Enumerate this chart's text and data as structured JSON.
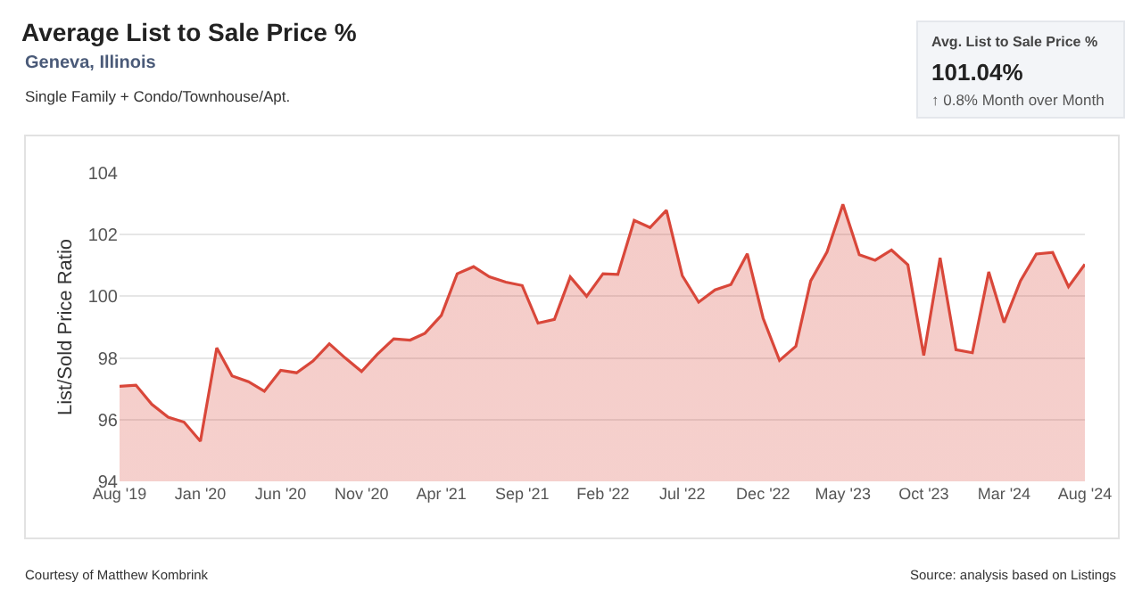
{
  "chart_data": {
    "type": "area",
    "title": "Average List to Sale Price %",
    "subtitle": "Geneva, Illinois",
    "ylabel": "List/Sold Price Ratio",
    "annotations": [
      "Single Family + Condo/Townhouse/Apt.",
      "Avg. List to Sale Price %",
      "101.04%",
      "↑ 0.8% Month over Month",
      "Courtesy of Matthew Kombrink",
      "Source: analysis based on Listings"
    ],
    "x": [
      "2019-08",
      "2019-09",
      "2019-10",
      "2019-11",
      "2019-12",
      "2020-01",
      "2020-02",
      "2020-03",
      "2020-04",
      "2020-05",
      "2020-06",
      "2020-07",
      "2020-08",
      "2020-09",
      "2020-10",
      "2020-11",
      "2020-12",
      "2021-01",
      "2021-02",
      "2021-03",
      "2021-04",
      "2021-05",
      "2021-06",
      "2021-07",
      "2021-08",
      "2021-09",
      "2021-10",
      "2021-11",
      "2021-12",
      "2022-01",
      "2022-02",
      "2022-03",
      "2022-04",
      "2022-05",
      "2022-06",
      "2022-07",
      "2022-08",
      "2022-09",
      "2022-10",
      "2022-11",
      "2022-12",
      "2023-01",
      "2023-02",
      "2023-03",
      "2023-04",
      "2023-05",
      "2023-06",
      "2023-07",
      "2023-08",
      "2023-09",
      "2023-10",
      "2023-11",
      "2023-12",
      "2024-01",
      "2024-02",
      "2024-03",
      "2024-04",
      "2024-05",
      "2024-06",
      "2024-07",
      "2024-08"
    ],
    "series": [
      {
        "color": "#d9473a",
        "values": [
          97.08,
          97.12,
          96.5,
          96.08,
          95.92,
          95.3,
          98.33,
          97.42,
          97.23,
          96.92,
          97.6,
          97.52,
          97.9,
          98.46,
          98.0,
          97.56,
          98.12,
          98.62,
          98.58,
          98.8,
          99.38,
          100.73,
          100.96,
          100.63,
          100.46,
          100.35,
          99.13,
          99.25,
          100.63,
          100.0,
          100.73,
          100.71,
          102.46,
          102.23,
          102.79,
          100.67,
          99.81,
          100.21,
          100.38,
          101.38,
          99.29,
          97.92,
          98.38,
          100.5,
          101.44,
          102.98,
          101.35,
          101.17,
          101.5,
          101.02,
          98.08,
          101.25,
          98.27,
          98.17,
          100.79,
          99.15,
          100.5,
          101.37,
          101.42,
          100.31,
          101.04
        ]
      }
    ],
    "xlim": [
      "2019-08",
      "2024-08"
    ],
    "xticks": [
      {
        "value": "2019-08",
        "label": "Aug '19"
      },
      {
        "value": "2020-01",
        "label": "Jan '20"
      },
      {
        "value": "2020-06",
        "label": "Jun '20"
      },
      {
        "value": "2020-11",
        "label": "Nov '20"
      },
      {
        "value": "2021-04",
        "label": "Apr '21"
      },
      {
        "value": "2021-09",
        "label": "Sep '21"
      },
      {
        "value": "2022-02",
        "label": "Feb '22"
      },
      {
        "value": "2022-07",
        "label": "Jul '22"
      },
      {
        "value": "2022-12",
        "label": "Dec '22"
      },
      {
        "value": "2023-05",
        "label": "May '23"
      },
      {
        "value": "2023-10",
        "label": "Oct '23"
      },
      {
        "value": "2024-03",
        "label": "Mar '24"
      },
      {
        "value": "2024-08",
        "label": "Aug '24"
      }
    ],
    "ylim": [
      94,
      104
    ],
    "yticks": [
      94,
      96,
      98,
      100,
      102,
      104
    ],
    "grid": "y",
    "marker": "none",
    "line_style": "solid"
  }
}
